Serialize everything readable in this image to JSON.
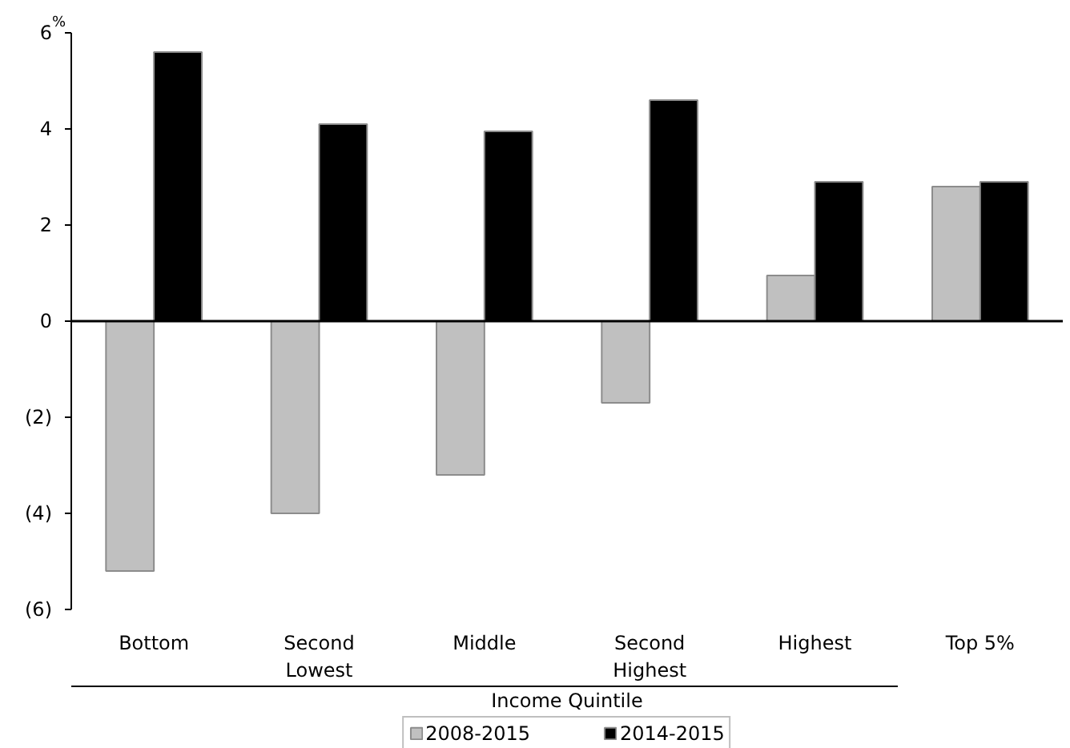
{
  "chart_data": {
    "type": "bar",
    "xlabel": "Income Quintile",
    "ylabel": "%",
    "categories": [
      "Bottom",
      "Second Lowest",
      "Middle",
      "Second Highest",
      "Highest",
      "Top 5%"
    ],
    "series": [
      {
        "name": "2008-2015",
        "color": "#c0c0c0",
        "values": [
          -5.2,
          -4.0,
          -3.2,
          -1.7,
          0.95,
          2.8
        ]
      },
      {
        "name": "2014-2015",
        "color": "#000000",
        "values": [
          5.6,
          4.1,
          3.95,
          4.6,
          2.9,
          2.9
        ]
      }
    ],
    "ylim": [
      -6,
      6
    ],
    "yticks": [
      {
        "value": -6,
        "label": "(6)"
      },
      {
        "value": -4,
        "label": "(4)"
      },
      {
        "value": -2,
        "label": "(2)"
      },
      0,
      2,
      4,
      6
    ],
    "legend": "bottom"
  }
}
